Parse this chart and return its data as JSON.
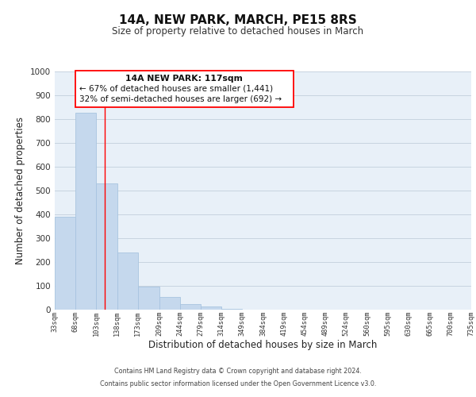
{
  "title": "14A, NEW PARK, MARCH, PE15 8RS",
  "subtitle": "Size of property relative to detached houses in March",
  "xlabel": "Distribution of detached houses by size in March",
  "ylabel": "Number of detached properties",
  "bar_edges": [
    33,
    68,
    103,
    138,
    173,
    209,
    244,
    279,
    314,
    349,
    384,
    419,
    454,
    489,
    524,
    560,
    595,
    630,
    665,
    700,
    735
  ],
  "bar_heights": [
    390,
    828,
    530,
    240,
    97,
    52,
    22,
    15,
    5,
    0,
    0,
    0,
    0,
    0,
    0,
    0,
    0,
    0,
    0,
    0
  ],
  "bar_color": "#c5d8ed",
  "bar_edge_color": "#a8c4e0",
  "grid_color": "#c8d4e0",
  "bg_color": "#e8f0f8",
  "red_line_x": 117,
  "ann_line1": "14A NEW PARK: 117sqm",
  "ann_line2": "← 67% of detached houses are smaller (1,441)",
  "ann_line3": "32% of semi-detached houses are larger (692) →",
  "ylim": [
    0,
    1000
  ],
  "yticks": [
    0,
    100,
    200,
    300,
    400,
    500,
    600,
    700,
    800,
    900,
    1000
  ],
  "tick_labels": [
    "33sqm",
    "68sqm",
    "103sqm",
    "138sqm",
    "173sqm",
    "209sqm",
    "244sqm",
    "279sqm",
    "314sqm",
    "349sqm",
    "384sqm",
    "419sqm",
    "454sqm",
    "489sqm",
    "524sqm",
    "560sqm",
    "595sqm",
    "630sqm",
    "665sqm",
    "700sqm",
    "735sqm"
  ],
  "footer_line1": "Contains HM Land Registry data © Crown copyright and database right 2024.",
  "footer_line2": "Contains public sector information licensed under the Open Government Licence v3.0."
}
